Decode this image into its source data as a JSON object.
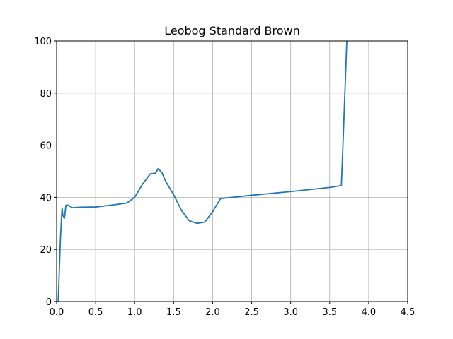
{
  "chart_data": {
    "type": "line",
    "title": "Leobog Standard Brown",
    "x": [
      0.0,
      0.02,
      0.05,
      0.07,
      0.08,
      0.1,
      0.12,
      0.15,
      0.2,
      0.3,
      0.5,
      0.7,
      0.9,
      1.0,
      1.1,
      1.2,
      1.27,
      1.3,
      1.35,
      1.4,
      1.5,
      1.6,
      1.7,
      1.8,
      1.9,
      2.0,
      2.1,
      2.5,
      3.0,
      3.5,
      3.65,
      3.67,
      3.72
    ],
    "values": [
      0,
      0,
      25,
      36,
      33,
      32,
      37,
      37,
      36,
      36.2,
      36.3,
      37,
      37.8,
      40,
      45,
      49,
      49.3,
      51,
      49.5,
      46,
      41,
      35,
      31,
      30,
      30.5,
      34.5,
      39.5,
      40.8,
      42.2,
      43.8,
      44.5,
      60,
      100
    ],
    "color": "#1f77b4",
    "xlim": [
      0,
      4.5
    ],
    "xticks": [
      {
        "value": 0,
        "label": "0.0"
      },
      0.5,
      {
        "value": 1,
        "label": "1.0"
      },
      1.5,
      {
        "value": 2,
        "label": "2.0"
      },
      2.5,
      {
        "value": 3,
        "label": "3.0"
      },
      3.5,
      {
        "value": 4,
        "label": "4.0"
      },
      4.5
    ],
    "ylim": [
      0,
      100
    ],
    "yticks": [
      0,
      20,
      40,
      60,
      80,
      100
    ],
    "grid": true
  }
}
